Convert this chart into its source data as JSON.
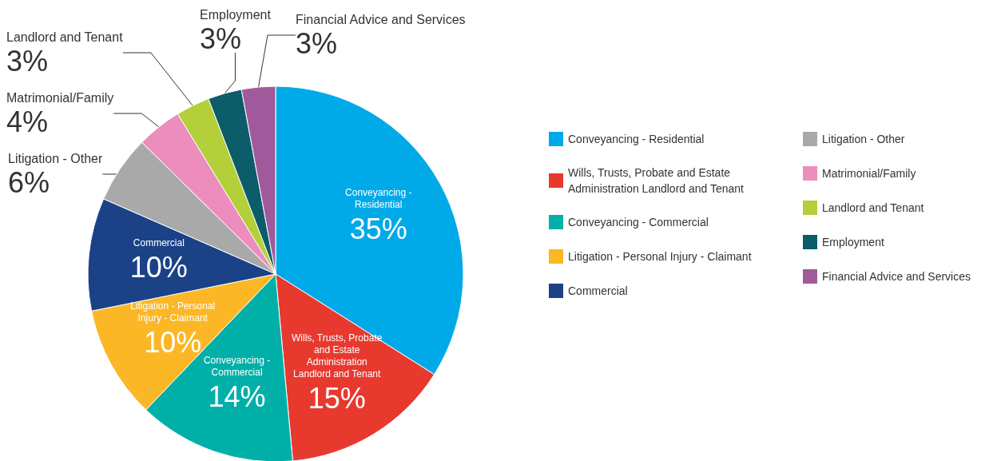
{
  "chart_data": {
    "type": "pie",
    "categories": [
      "Conveyancing - Residential",
      "Wills, Trusts, Probate and Estate Administration Landlord and Tenant",
      "Conveyancing - Commercial",
      "Litigation - Personal Injury - Claimant",
      "Commercial",
      "Litigation - Other",
      "Matrimonial/Family",
      "Landlord and Tenant",
      "Employment",
      "Financial Advice and Services"
    ],
    "values": [
      35,
      15,
      14,
      10,
      10,
      6,
      4,
      3,
      3,
      3
    ],
    "value_labels": [
      "35%",
      "15%",
      "14%",
      "10%",
      "10%",
      "6%",
      "4%",
      "3%",
      "3%",
      "3%"
    ],
    "colors": [
      "#00a9e8",
      "#e8392f",
      "#00b0a8",
      "#fbb726",
      "#1b4287",
      "#a9a9a9",
      "#ec8dbd",
      "#b3cf3a",
      "#0c5c6a",
      "#a05a9c"
    ],
    "legend": "right"
  }
}
